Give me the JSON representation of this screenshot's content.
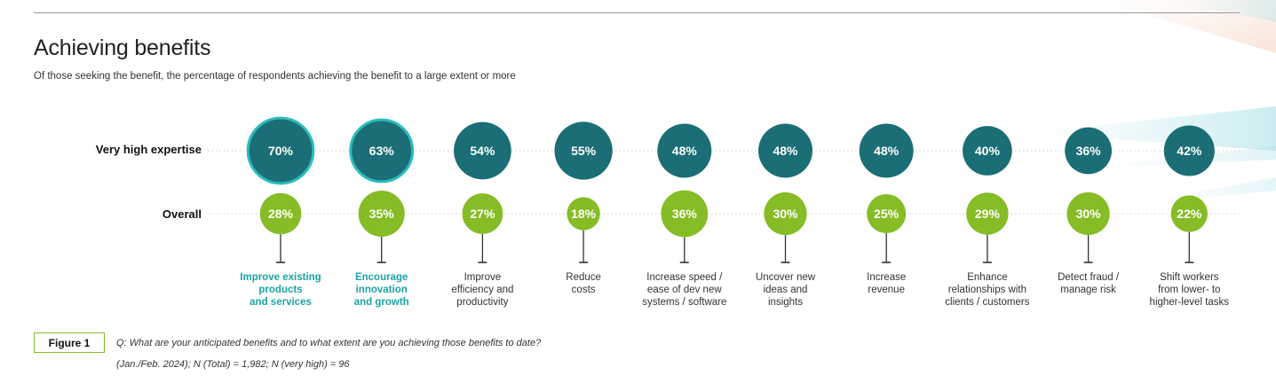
{
  "header": {
    "title": "Achieving benefits",
    "subtitle": "Of those seeking the benefit, the percentage of respondents achieving the benefit to a large extent or more"
  },
  "chart_data": {
    "type": "bubble",
    "title": "Achieving benefits",
    "subtitle": "Of those seeking the benefit, the percentage of respondents achieving the benefit to a large extent or more",
    "categories": [
      "Improve existing\nproducts\nand services",
      "Encourage\ninnovation\nand growth",
      "Improve\nefficiency and\nproductivity",
      "Reduce\ncosts",
      "Increase speed /\nease of dev new\nsystems / software",
      "Uncover new\nideas and\ninsights",
      "Increase\nrevenue",
      "Enhance\nrelationships with\nclients / customers",
      "Detect fraud /\nmanage risk",
      "Shift workers\nfrom lower- to\nhigher-level tasks"
    ],
    "highlighted": [
      true,
      true,
      false,
      false,
      false,
      false,
      false,
      false,
      false,
      false
    ],
    "series": [
      {
        "name": "Very high expertise",
        "values": [
          70,
          63,
          54,
          55,
          48,
          48,
          48,
          40,
          36,
          42
        ],
        "color": "#1b6e75"
      },
      {
        "name": "Overall",
        "values": [
          28,
          35,
          27,
          18,
          36,
          30,
          25,
          29,
          30,
          22
        ],
        "color": "#86bc25"
      }
    ],
    "highlight_ring_color": "#2bbcbc",
    "unit": "%"
  },
  "figure": {
    "label": "Figure 1",
    "question": "Q: What are your anticipated benefits and to what extent are you achieving those benefits to date?",
    "note": "(Jan./Feb. 2024); N (Total) = 1,982; N (very high) = 96"
  }
}
